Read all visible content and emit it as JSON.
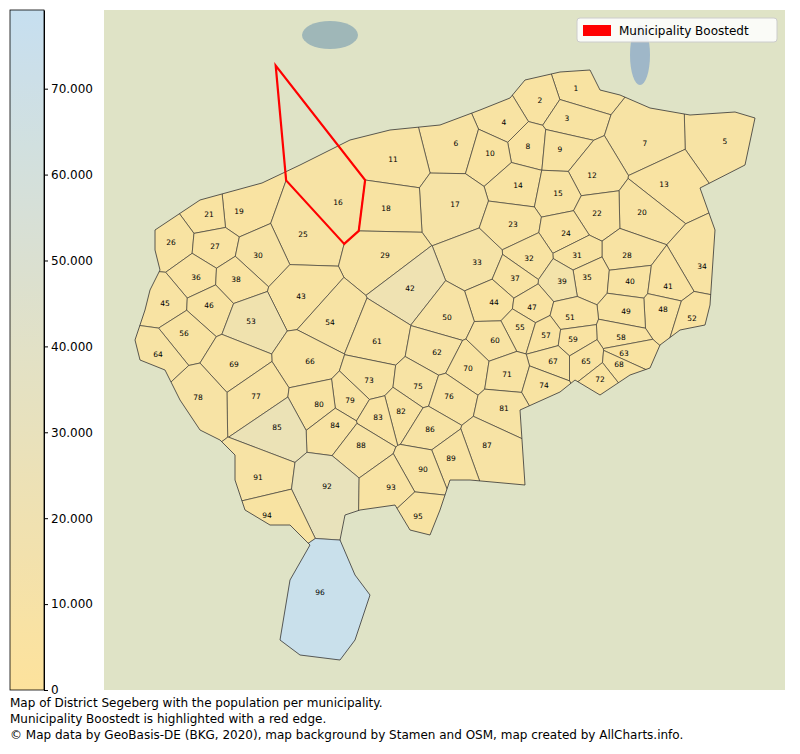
{
  "chart_data": {
    "type": "choropleth",
    "caption": [
      "Map of District Segeberg with the population per municipality.",
      "Municipality Boostedt is highlighted with a red edge.",
      "© Map data by GeoBasis-DE (BKG, 2020), map background by Stamen and OSM, map created by AllCharts.info."
    ],
    "regions": [
      "1",
      "2",
      "3",
      "4",
      "5",
      "6",
      "7",
      "8",
      "9",
      "10",
      "11",
      "12",
      "13",
      "14",
      "15",
      "16",
      "17",
      "18",
      "19",
      "20",
      "21",
      "22",
      "23",
      "24",
      "25",
      "26",
      "27",
      "28",
      "29",
      "30",
      "31",
      "32",
      "33",
      "34",
      "35",
      "36",
      "37",
      "38",
      "39",
      "40",
      "41",
      "42",
      "43",
      "44",
      "45",
      "46",
      "47",
      "48",
      "49",
      "50",
      "51",
      "52",
      "53",
      "54",
      "55",
      "56",
      "57",
      "58",
      "59",
      "60",
      "61",
      "62",
      "63",
      "64",
      "65",
      "66",
      "67",
      "68",
      "69",
      "70",
      "71",
      "72",
      "73",
      "74",
      "75",
      "76",
      "77",
      "78",
      "79",
      "80",
      "81",
      "82",
      "83",
      "84",
      "85",
      "86",
      "87",
      "88",
      "89",
      "90",
      "91",
      "92",
      "93",
      "94",
      "95",
      "96"
    ],
    "values": [
      1200,
      600,
      900,
      1500,
      2500,
      1800,
      2600,
      700,
      1100,
      400,
      1500,
      1600,
      700,
      1300,
      900,
      4600,
      5300,
      1300,
      600,
      1900,
      300,
      500,
      1400,
      500,
      2800,
      800,
      700,
      2100,
      2300,
      2500,
      800,
      1000,
      6800,
      2100,
      500,
      500,
      900,
      700,
      9700,
      800,
      500,
      17500,
      1300,
      300,
      2000,
      1100,
      600,
      700,
      800,
      3500,
      500,
      600,
      14500,
      2700,
      800,
      1000,
      400,
      500,
      600,
      1500,
      1600,
      3600,
      300,
      2900,
      500,
      1700,
      800,
      400,
      2000,
      1400,
      1600,
      400,
      2300,
      1200,
      2500,
      1900,
      1900,
      3400,
      1500,
      1400,
      2900,
      1200,
      700,
      1900,
      22500,
      2700,
      3900,
      3700,
      1600,
      2400,
      4900,
      28500,
      2100,
      1300,
      1000,
      79160
    ],
    "colorbar_lim": [
      0,
      79160
    ],
    "colorbar_ticks": [
      0,
      {
        "value": 10000,
        "label": "10.000"
      },
      {
        "value": 20000,
        "label": "20.000"
      },
      {
        "value": 30000,
        "label": "30.000"
      },
      {
        "value": 40000,
        "label": "40.000"
      },
      {
        "value": 50000,
        "label": "50.000"
      },
      {
        "value": 60000,
        "label": "60.000"
      },
      {
        "value": 70000,
        "label": "70.000"
      }
    ],
    "highlight": {
      "name": "Municipality Boostedt",
      "region": "16",
      "color": "#ff0000"
    },
    "legend": "upper right"
  }
}
